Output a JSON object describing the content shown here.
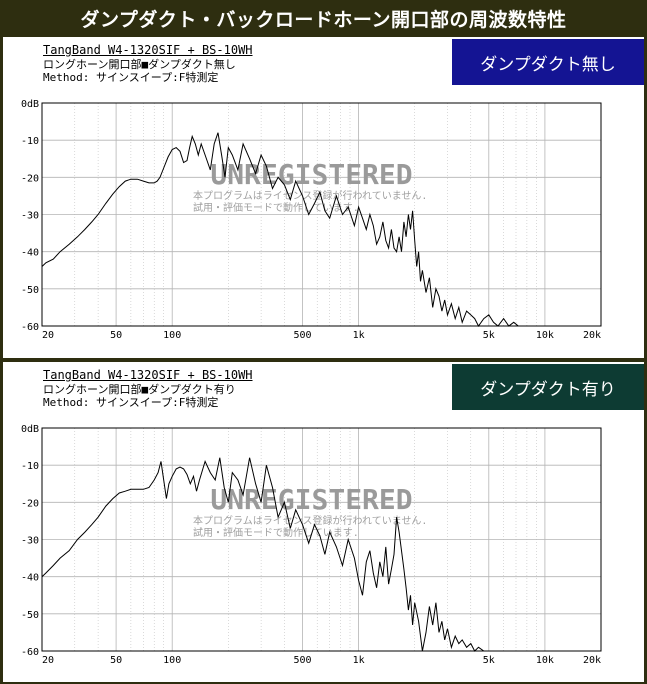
{
  "page_title": "ダンプダクト・バックロードホーン開口部の周波数特性",
  "watermark": {
    "main": "UNREGISTERED",
    "line1": "本プログラムはライセンス登録が行われていません.",
    "line2": "試用・評価モードで動作しています."
  },
  "colors": {
    "background": "#2e2e10",
    "badge_without": "#141493",
    "badge_with": "#0d3b33",
    "grid": "#b4b4b4",
    "trace": "#000000"
  },
  "chart_data": [
    {
      "type": "line",
      "header": {
        "model": "TangBand W4-1320SIF + BS-10WH",
        "condition": "ロングホーン開口部■ダンプダクト無し",
        "method": "Method: サインスイープ:F特測定"
      },
      "badge": "ダンプダクト無し",
      "x_scale": "log",
      "xlim": [
        20,
        20000
      ],
      "ylim": [
        -60,
        0
      ],
      "x_ticks": [
        20,
        50,
        100,
        500,
        1000,
        5000,
        10000,
        20000
      ],
      "x_tick_labels": [
        "20",
        "50",
        "100",
        "500",
        "1k",
        "5k",
        "10k",
        "20k"
      ],
      "y_ticks": [
        0,
        -10,
        -20,
        -30,
        -40,
        -50,
        -60
      ],
      "y_tick_labels": [
        "0dB",
        "-10",
        "-20",
        "-30",
        "-40",
        "-50",
        "-60"
      ],
      "grid": true,
      "x": [
        20,
        21,
        23,
        25,
        28,
        31,
        34,
        37,
        40,
        44,
        48,
        52,
        56,
        60,
        65,
        70,
        75,
        80,
        83,
        86,
        90,
        95,
        100,
        105,
        110,
        115,
        120,
        124,
        128,
        133,
        138,
        143,
        150,
        160,
        168,
        176,
        184,
        192,
        200,
        210,
        225,
        240,
        260,
        280,
        300,
        320,
        345,
        370,
        400,
        430,
        460,
        500,
        540,
        580,
        620,
        660,
        700,
        760,
        820,
        880,
        950,
        1000,
        1050,
        1100,
        1150,
        1200,
        1250,
        1300,
        1350,
        1400,
        1450,
        1500,
        1550,
        1600,
        1650,
        1700,
        1750,
        1800,
        1850,
        1900,
        1950,
        2000,
        2050,
        2100,
        2150,
        2200,
        2300,
        2400,
        2500,
        2600,
        2700,
        2800,
        2900,
        3000,
        3150,
        3300,
        3450,
        3600,
        3800,
        4000,
        4200,
        4400,
        4700,
        5000,
        5300,
        5600,
        6000,
        6400,
        6800,
        7200,
        7600,
        8000,
        8500,
        9000
      ],
      "y": [
        -44,
        -43,
        -42,
        -40,
        -38,
        -36,
        -34,
        -32,
        -30,
        -27,
        -24.5,
        -22.5,
        -21,
        -20.5,
        -20.5,
        -21,
        -21.5,
        -21.5,
        -21,
        -20,
        -17.5,
        -14.5,
        -12.5,
        -12,
        -13,
        -16,
        -15.5,
        -12,
        -9,
        -11,
        -14,
        -11,
        -14,
        -18,
        -11,
        -8,
        -14,
        -20,
        -12,
        -14,
        -18,
        -11,
        -15,
        -19,
        -14,
        -17,
        -23,
        -20,
        -22,
        -26,
        -21,
        -25,
        -30,
        -27,
        -24,
        -29,
        -31,
        -25,
        -30,
        -28,
        -33,
        -28,
        -31,
        -34,
        -30,
        -33,
        -38,
        -36,
        -32,
        -37,
        -39,
        -34,
        -39,
        -40,
        -36,
        -40,
        -32,
        -36,
        -30,
        -34,
        -29,
        -37,
        -44,
        -40,
        -48,
        -45,
        -51,
        -47,
        -55,
        -50,
        -52,
        -56,
        -53,
        -57,
        -54,
        -58,
        -55,
        -59,
        -56,
        -57,
        -58,
        -60,
        -58,
        -57,
        -59,
        -60,
        -58,
        -60,
        -59,
        -60,
        -60,
        -60,
        -60,
        -60
      ]
    },
    {
      "type": "line",
      "header": {
        "model": "TangBand W4-1320SIF + BS-10WH",
        "condition": "ロングホーン開口部■ダンプダクト有り",
        "method": "Method: サインスイープ:F特測定"
      },
      "badge": "ダンプダクト有り",
      "x_scale": "log",
      "xlim": [
        20,
        20000
      ],
      "ylim": [
        -60,
        0
      ],
      "x_ticks": [
        20,
        50,
        100,
        500,
        1000,
        5000,
        10000,
        20000
      ],
      "x_tick_labels": [
        "20",
        "50",
        "100",
        "500",
        "1k",
        "5k",
        "10k",
        "20k"
      ],
      "y_ticks": [
        0,
        -10,
        -20,
        -30,
        -40,
        -50,
        -60
      ],
      "y_tick_labels": [
        "0dB",
        "-10",
        "-20",
        "-30",
        "-40",
        "-50",
        "-60"
      ],
      "grid": true,
      "x": [
        20,
        21,
        23,
        25,
        28,
        31,
        34,
        37,
        40,
        44,
        48,
        52,
        56,
        60,
        65,
        70,
        75,
        80,
        84,
        87,
        90,
        93,
        96,
        100,
        105,
        110,
        115,
        120,
        125,
        130,
        135,
        140,
        150,
        160,
        170,
        180,
        190,
        200,
        210,
        225,
        240,
        260,
        280,
        300,
        320,
        345,
        370,
        400,
        430,
        460,
        500,
        540,
        580,
        620,
        660,
        700,
        760,
        820,
        880,
        950,
        1000,
        1050,
        1100,
        1150,
        1200,
        1250,
        1300,
        1350,
        1400,
        1450,
        1500,
        1550,
        1600,
        1650,
        1700,
        1750,
        1800,
        1850,
        1900,
        1950,
        2000,
        2100,
        2200,
        2300,
        2400,
        2500,
        2600,
        2700,
        2800,
        2900,
        3000,
        3150,
        3300,
        3450,
        3600,
        3800,
        4000,
        4200,
        4400,
        4700,
        5000
      ],
      "y": [
        -40,
        -39,
        -37,
        -35,
        -33,
        -30,
        -28,
        -26,
        -24,
        -21,
        -19,
        -17.5,
        -17,
        -16.5,
        -16.5,
        -16.5,
        -16,
        -14,
        -12,
        -9,
        -14,
        -19,
        -15,
        -13,
        -11,
        -10.5,
        -11,
        -12.5,
        -15,
        -13,
        -17,
        -14,
        -9,
        -12,
        -14,
        -8,
        -16,
        -20,
        -12,
        -14,
        -18,
        -8,
        -15,
        -20,
        -10,
        -16,
        -24,
        -20,
        -27,
        -22,
        -26,
        -31,
        -26,
        -29,
        -34,
        -28,
        -32,
        -37,
        -30,
        -35,
        -41,
        -45,
        -36,
        -33,
        -39,
        -43,
        -36,
        -40,
        -32,
        -42,
        -38,
        -34,
        -24,
        -28,
        -33,
        -38,
        -43,
        -49,
        -45,
        -53,
        -47,
        -52,
        -60,
        -55,
        -48,
        -53,
        -47,
        -55,
        -52,
        -57,
        -54,
        -59,
        -56,
        -58,
        -57,
        -59,
        -58,
        -60,
        -59,
        -60,
        -60
      ]
    }
  ]
}
